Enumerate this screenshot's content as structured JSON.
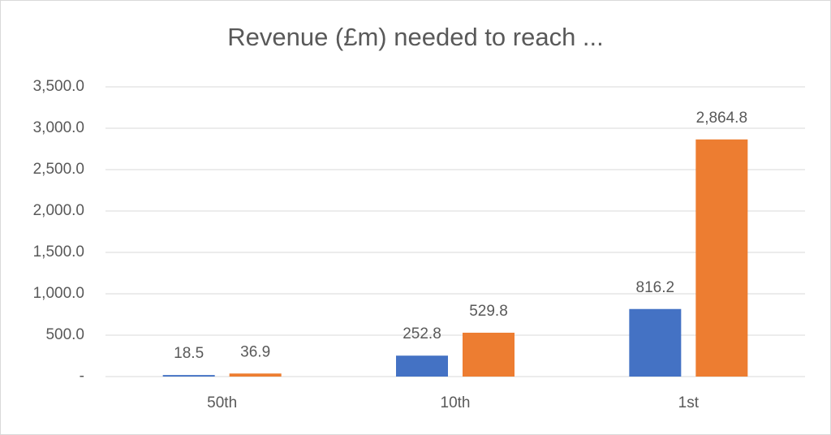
{
  "chart_data": {
    "type": "bar",
    "title": "Revenue (£m) needed to reach ...",
    "categories": [
      "50th",
      "10th",
      "1st"
    ],
    "series": [
      {
        "color": "#4472c4",
        "values": [
          18.5,
          252.8,
          816.2
        ],
        "value_labels": [
          "18.5",
          "252.8",
          "816.2"
        ]
      },
      {
        "color": "#ed7d31",
        "values": [
          36.9,
          529.8,
          2864.8
        ],
        "value_labels": [
          "36.9",
          "529.8",
          "2,864.8"
        ]
      }
    ],
    "ylim": [
      0,
      3500
    ],
    "yticks": [
      {
        "value": 0,
        "label": "-"
      },
      {
        "value": 500,
        "label": "500.0"
      },
      {
        "value": 1000,
        "label": "1,000.0"
      },
      {
        "value": 1500,
        "label": "1,500.0"
      },
      {
        "value": 2000,
        "label": "2,000.0"
      },
      {
        "value": 2500,
        "label": "2,500.0"
      },
      {
        "value": 3000,
        "label": "3,000.0"
      },
      {
        "value": 3500,
        "label": "3,500.0"
      }
    ],
    "grid": true
  }
}
